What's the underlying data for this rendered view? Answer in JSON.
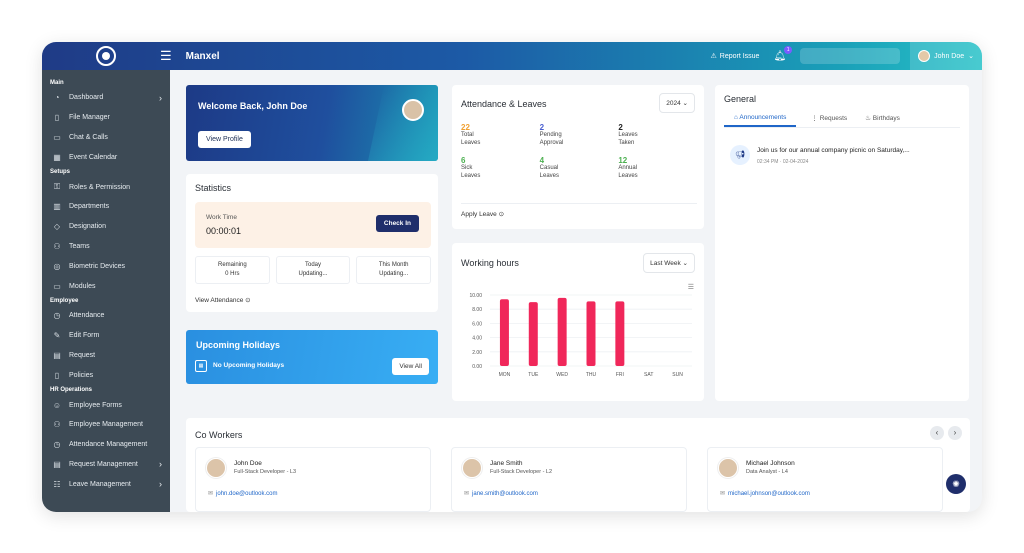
{
  "app": {
    "name": "Manxel"
  },
  "topbar": {
    "report_issue": "Report Issue",
    "notifications_count": "1",
    "user_name": "John Doe"
  },
  "sidebar": {
    "sections": [
      {
        "title": "Main",
        "items": [
          {
            "label": "Dashboard",
            "icon": "dashboard-icon",
            "chevron": true
          },
          {
            "label": "File Manager",
            "icon": "file-icon"
          },
          {
            "label": "Chat & Calls",
            "icon": "chat-icon"
          },
          {
            "label": "Event Calendar",
            "icon": "calendar-icon"
          }
        ]
      },
      {
        "title": "Setups",
        "items": [
          {
            "label": "Roles & Permission",
            "icon": "key-icon"
          },
          {
            "label": "Departments",
            "icon": "building-icon"
          },
          {
            "label": "Designation",
            "icon": "badge-icon"
          },
          {
            "label": "Teams",
            "icon": "team-icon"
          },
          {
            "label": "Biometric Devices",
            "icon": "fingerprint-icon"
          },
          {
            "label": "Modules",
            "icon": "monitor-icon"
          }
        ]
      },
      {
        "title": "Employee",
        "items": [
          {
            "label": "Attendance",
            "icon": "clock-icon"
          },
          {
            "label": "Edit Form",
            "icon": "edit-icon"
          },
          {
            "label": "Request",
            "icon": "request-icon"
          },
          {
            "label": "Policies",
            "icon": "policy-icon"
          }
        ]
      },
      {
        "title": "HR Operations",
        "items": [
          {
            "label": "Employee Forms",
            "icon": "user-icon"
          },
          {
            "label": "Employee Management",
            "icon": "users-icon"
          },
          {
            "label": "Attendance Management",
            "icon": "clock-icon"
          },
          {
            "label": "Request Management",
            "icon": "request-icon",
            "chevron": true
          },
          {
            "label": "Leave Management",
            "icon": "leave-icon",
            "chevron": true
          }
        ]
      }
    ]
  },
  "welcome": {
    "title": "Welcome Back, John Doe",
    "button": "View Profile"
  },
  "statistics": {
    "title": "Statistics",
    "work_time_label": "Work Time",
    "work_time_value": "00:00:01",
    "check_in": "Check In",
    "tiles": [
      {
        "label": "Remaining",
        "value": "0 Hrs"
      },
      {
        "label": "Today",
        "value": "Updating..."
      },
      {
        "label": "This Month",
        "value": "Updating..."
      }
    ],
    "view_attendance": "View Attendance"
  },
  "holidays": {
    "title": "Upcoming Holidays",
    "message": "No Upcoming Holidays",
    "button": "View All"
  },
  "attendance": {
    "title": "Attendance & Leaves",
    "year": "2024",
    "stats": [
      {
        "value": "22",
        "label": "Total Leaves",
        "color": "#f0a030"
      },
      {
        "value": "2",
        "label": "Pending Approval",
        "color": "#4a5fd0"
      },
      {
        "value": "2",
        "label": "Leaves Taken",
        "color": "#222222"
      },
      {
        "value": "6",
        "label": "Sick Leaves",
        "color": "#4cb050"
      },
      {
        "value": "4",
        "label": "Casual Leaves",
        "color": "#4cb050"
      },
      {
        "value": "12",
        "label": "Annual Leaves",
        "color": "#4cb050"
      }
    ],
    "apply_leave": "Apply Leave"
  },
  "working_hours": {
    "title": "Working hours",
    "range": "Last Week"
  },
  "chart_data": {
    "type": "bar",
    "categories": [
      "MON",
      "TUE",
      "WED",
      "THU",
      "FRI",
      "SAT",
      "SUN"
    ],
    "values": [
      9.4,
      9.0,
      9.6,
      9.1,
      9.1,
      0,
      0
    ],
    "yticks": [
      "10.00",
      "8.00",
      "6.00",
      "4.00",
      "2.00",
      "0.00"
    ],
    "ylim": [
      0,
      10
    ],
    "bar_color": "#f0275a",
    "grid": true
  },
  "general": {
    "title": "General",
    "tabs": [
      {
        "label": "Announcements",
        "icon": "megaphone-icon",
        "active": true
      },
      {
        "label": "Requests",
        "icon": "list-icon",
        "active": false
      },
      {
        "label": "Birthdays",
        "icon": "cake-icon",
        "active": false
      }
    ],
    "announcement": {
      "text": "Join us for our annual company picnic on Saturday,...",
      "time": "02:34 PM · 02-04-2024"
    }
  },
  "coworkers": {
    "title": "Co Workers",
    "people": [
      {
        "name": "John Doe",
        "role": "Full-Stack Developer - L3",
        "email": "john.doe@outlook.com"
      },
      {
        "name": "Jane Smith",
        "role": "Full-Stack Developer - L2",
        "email": "jane.smith@outlook.com"
      },
      {
        "name": "Michael Johnson",
        "role": "Data Analyst - L4",
        "email": "michael.johnson@outlook.com"
      }
    ]
  }
}
